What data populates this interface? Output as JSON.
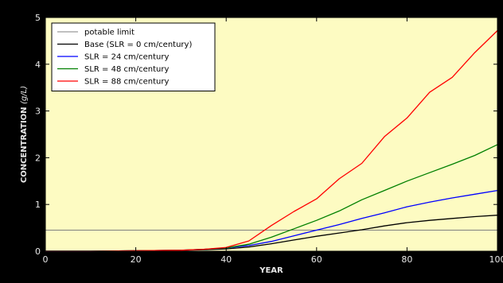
{
  "chart_data": {
    "type": "line",
    "xlabel": "YEAR",
    "ylabel_main": "CONCENTRATION ",
    "ylabel_unit": "(g/L)",
    "xlim": [
      0,
      100
    ],
    "ylim": [
      0,
      5
    ],
    "x_ticks": [
      0,
      20,
      40,
      60,
      80,
      100
    ],
    "y_ticks": [
      0,
      1,
      2,
      3,
      4,
      5
    ],
    "grid": false,
    "legend_position": "top-left",
    "background_color": "#fdfbc2",
    "series": [
      {
        "name": "potable limit",
        "color": "#808080",
        "x": [
          0,
          100
        ],
        "y": [
          0.45,
          0.45
        ]
      },
      {
        "name": "Base (SLR = 0 cm/century)",
        "color": "#000000",
        "x": [
          0,
          10,
          20,
          30,
          35,
          40,
          45,
          50,
          55,
          60,
          65,
          70,
          75,
          80,
          85,
          90,
          95,
          100
        ],
        "y": [
          0.0,
          0.0,
          0.01,
          0.02,
          0.03,
          0.05,
          0.09,
          0.16,
          0.24,
          0.32,
          0.39,
          0.46,
          0.54,
          0.61,
          0.66,
          0.7,
          0.74,
          0.77
        ]
      },
      {
        "name": "SLR = 24 cm/century",
        "color": "#0000ff",
        "x": [
          0,
          10,
          20,
          30,
          35,
          40,
          45,
          50,
          55,
          60,
          65,
          70,
          75,
          80,
          85,
          90,
          95,
          100
        ],
        "y": [
          0.0,
          0.0,
          0.01,
          0.02,
          0.04,
          0.07,
          0.12,
          0.21,
          0.33,
          0.45,
          0.57,
          0.7,
          0.82,
          0.95,
          1.05,
          1.14,
          1.22,
          1.3
        ]
      },
      {
        "name": "SLR = 48 cm/century",
        "color": "#008000",
        "x": [
          0,
          10,
          20,
          30,
          35,
          40,
          45,
          50,
          55,
          60,
          65,
          70,
          75,
          80,
          85,
          90,
          95,
          100
        ],
        "y": [
          0.0,
          0.0,
          0.01,
          0.02,
          0.04,
          0.07,
          0.15,
          0.3,
          0.48,
          0.66,
          0.86,
          1.1,
          1.3,
          1.5,
          1.68,
          1.86,
          2.05,
          2.28
        ]
      },
      {
        "name": "SLR = 88 cm/century",
        "color": "#ff0000",
        "x": [
          0,
          10,
          20,
          30,
          35,
          40,
          45,
          50,
          55,
          60,
          65,
          70,
          75,
          80,
          85,
          90,
          95,
          100
        ],
        "y": [
          0.0,
          0.0,
          0.01,
          0.02,
          0.04,
          0.08,
          0.22,
          0.55,
          0.85,
          1.12,
          1.55,
          1.88,
          2.45,
          2.85,
          3.4,
          3.72,
          4.25,
          4.72
        ]
      }
    ]
  }
}
